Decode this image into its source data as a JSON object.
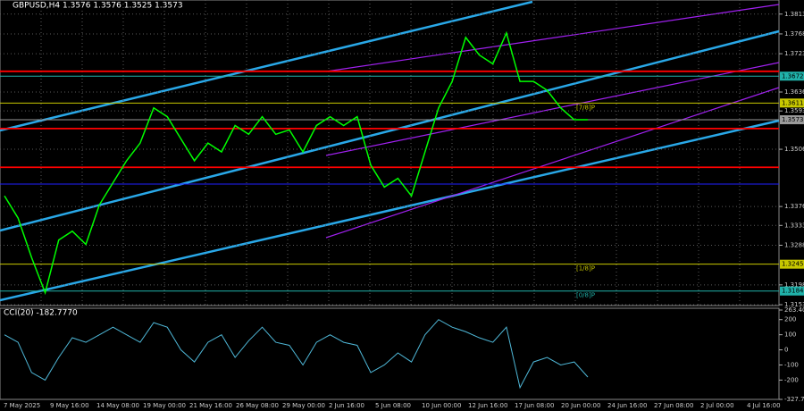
{
  "chart_data": [
    {
      "type": "line",
      "title": "GBPUSD,H4  1.3576 1.3576 1.3525 1.3573",
      "color": "#00ff00",
      "values": [
        1.34,
        1.335,
        1.326,
        1.318,
        1.33,
        1.332,
        1.329,
        1.338,
        1.343,
        1.348,
        1.352,
        1.36,
        1.358,
        1.353,
        1.348,
        1.352,
        1.35,
        1.356,
        1.354,
        1.358,
        1.354,
        1.355,
        1.35,
        1.356,
        1.358,
        1.356,
        1.358,
        1.347,
        1.342,
        1.344,
        1.34,
        1.35,
        1.36,
        1.366,
        1.376,
        1.372,
        1.37,
        1.377,
        1.366,
        1.366,
        1.364,
        1.36,
        1.3573,
        1.3573
      ],
      "ylim": [
        1.3151,
        1.3845
      ],
      "yticks": [
        1.3813,
        1.3768,
        1.3723,
        1.3636,
        1.3593,
        1.3506,
        1.3376,
        1.3333,
        1.3288,
        1.3198,
        1.3153
      ],
      "grid": true,
      "levels": [
        {
          "value": 1.3683,
          "color": "#ff0000"
        },
        {
          "value": 1.3672,
          "label": "1.3672",
          "color": "#20b2aa"
        },
        {
          "value": 1.3611,
          "label": "1.3611",
          "color": "#c8c800",
          "tag": "[7/8]P"
        },
        {
          "value": 1.3573,
          "label": "1.3573",
          "color": "#9a9a9a"
        },
        {
          "value": 1.3553,
          "color": "#ff0000"
        },
        {
          "value": 1.3465,
          "color": "#ff0000"
        },
        {
          "value": 1.3427,
          "color": "#2020ff"
        },
        {
          "value": 1.3245,
          "label": "1.3245",
          "color": "#c8c800",
          "tag": "[1/8]P"
        },
        {
          "value": 1.3184,
          "label": "1.3184",
          "color": "#20b2aa",
          "tag": "[0/8]P"
        }
      ]
    },
    {
      "type": "line",
      "title": "CCI(20) -182.7770",
      "color": "#4fb8d8",
      "values": [
        100,
        50,
        -150,
        -200,
        -50,
        80,
        50,
        100,
        150,
        100,
        50,
        180,
        150,
        0,
        -80,
        50,
        100,
        -50,
        60,
        150,
        50,
        30,
        -100,
        50,
        100,
        50,
        30,
        -150,
        -100,
        -20,
        -80,
        100,
        200,
        150,
        120,
        80,
        50,
        150,
        -250,
        -80,
        -50,
        -100,
        -80,
        -180
      ],
      "ylim": [
        -327.719,
        263.4065
      ],
      "yticks": [
        263.4065,
        200,
        100,
        0,
        -100,
        -200,
        -327.719
      ],
      "xticks": [
        "7 May 2025",
        "9 May 16:00",
        "14 May 08:00",
        "19 May 00:00",
        "21 May 16:00",
        "26 May 08:00",
        "29 May 00:00",
        "2 Jun 16:00",
        "5 Jun 08:00",
        "10 Jun 00:00",
        "12 Jun 16:00",
        "17 Jun 08:00",
        "20 Jun 00:00",
        "24 Jun 16:00",
        "27 Jun 08:00",
        "2 Jul 00:00",
        "4 Jul 16:00"
      ]
    }
  ]
}
